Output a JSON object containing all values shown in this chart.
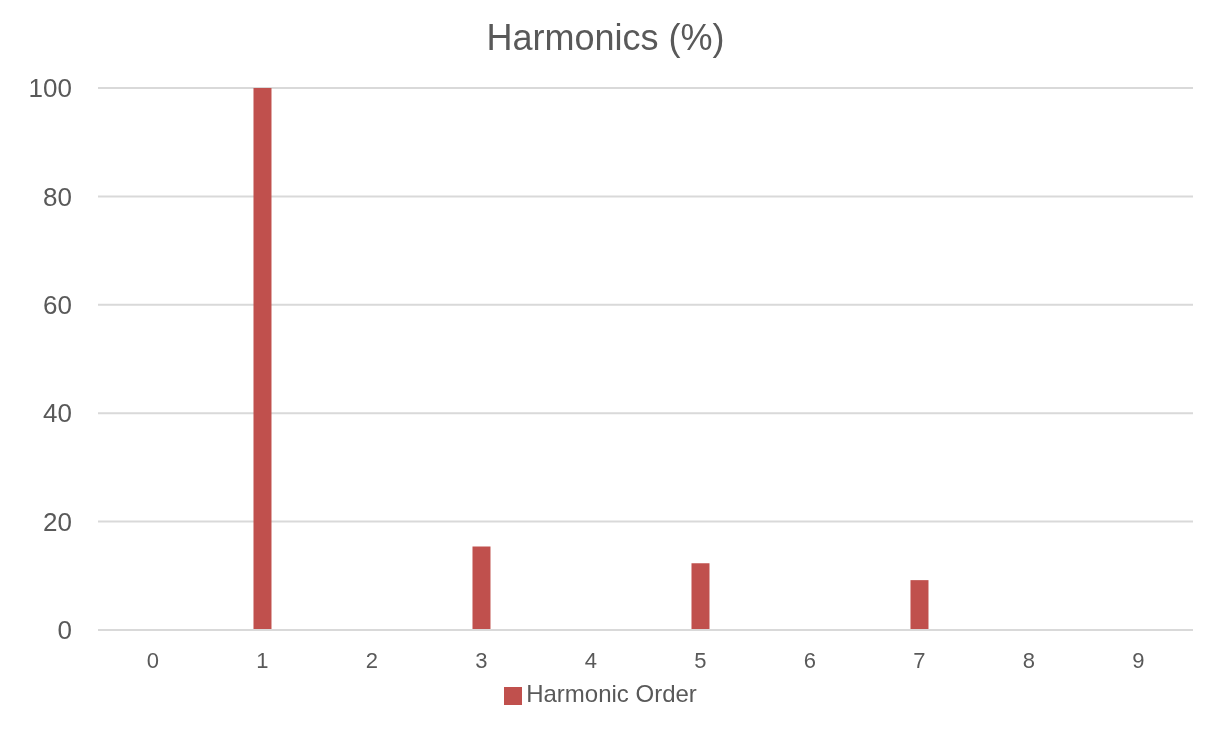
{
  "chart_data": {
    "type": "bar",
    "title": "Harmonics (%)",
    "categories": [
      "0",
      "1",
      "2",
      "3",
      "4",
      "5",
      "6",
      "7",
      "8",
      "9"
    ],
    "series": [
      {
        "name": "Harmonic Order",
        "color": "#c0504d",
        "values": [
          0,
          100,
          0,
          15.4,
          0,
          12.3,
          0,
          9.2,
          0,
          0
        ]
      }
    ],
    "ylim": [
      0,
      100
    ],
    "yticks": [
      0,
      20,
      40,
      60,
      80,
      100
    ],
    "grid": "y",
    "legend": "bottom"
  }
}
